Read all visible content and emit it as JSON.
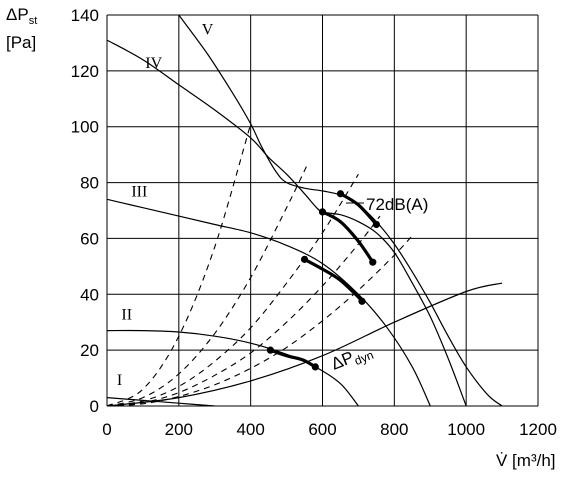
{
  "chart_data": {
    "type": "line",
    "xlabel": "V̇ [m³/h]",
    "ylabel_main": "ΔP",
    "ylabel_sub": "st",
    "ylabel_unit": "[Pa]",
    "xlim": [
      0,
      1200
    ],
    "ylim": [
      0,
      140
    ],
    "x_ticks": [
      "0",
      "200",
      "400",
      "600",
      "800",
      "1000",
      "1200"
    ],
    "y_ticks": [
      "0",
      "20",
      "40",
      "60",
      "80",
      "100",
      "120",
      "140"
    ],
    "grid": true,
    "annotations": {
      "noise": "72dB(A)",
      "dyn_main": "ΔP",
      "dyn_sub": "dyn"
    },
    "series": [
      {
        "name": "I",
        "points": [
          [
            0,
            3
          ],
          [
            100,
            2
          ],
          [
            200,
            1
          ],
          [
            300,
            0
          ]
        ]
      },
      {
        "name": "II",
        "points": [
          [
            0,
            27
          ],
          [
            100,
            27
          ],
          [
            200,
            26.5
          ],
          [
            300,
            25
          ],
          [
            400,
            22.5
          ],
          [
            500,
            18.5
          ],
          [
            580,
            14
          ],
          [
            650,
            8
          ],
          [
            700,
            0
          ]
        ]
      },
      {
        "name": "III",
        "points": [
          [
            0,
            74
          ],
          [
            100,
            71
          ],
          [
            200,
            68
          ],
          [
            300,
            65
          ],
          [
            400,
            62
          ],
          [
            500,
            57.5
          ],
          [
            600,
            51
          ],
          [
            700,
            40
          ],
          [
            780,
            28
          ],
          [
            850,
            14
          ],
          [
            900,
            0
          ]
        ]
      },
      {
        "name": "IV",
        "points": [
          [
            0,
            131
          ],
          [
            100,
            124
          ],
          [
            200,
            115
          ],
          [
            300,
            106
          ],
          [
            400,
            96
          ],
          [
            450,
            89
          ],
          [
            500,
            83
          ],
          [
            550,
            76
          ],
          [
            580,
            71.5
          ],
          [
            600,
            69.5
          ],
          [
            650,
            68.5
          ],
          [
            700,
            66
          ],
          [
            750,
            62
          ],
          [
            800,
            55
          ],
          [
            850,
            44
          ],
          [
            900,
            32
          ],
          [
            950,
            17
          ],
          [
            1000,
            0
          ]
        ]
      },
      {
        "name": "V",
        "points": [
          [
            200,
            140
          ],
          [
            280,
            126
          ],
          [
            350,
            112
          ],
          [
            400,
            101
          ],
          [
            430,
            93
          ],
          [
            470,
            84
          ],
          [
            500,
            80
          ],
          [
            550,
            78
          ],
          [
            600,
            77
          ],
          [
            650,
            75.5
          ],
          [
            700,
            72
          ],
          [
            750,
            66
          ],
          [
            800,
            58
          ],
          [
            850,
            48
          ],
          [
            900,
            37
          ],
          [
            950,
            25
          ],
          [
            1000,
            14
          ],
          [
            1060,
            4
          ],
          [
            1100,
            0
          ]
        ]
      },
      {
        "name": "ΔPdyn",
        "points": [
          [
            0,
            0
          ],
          [
            200,
            3
          ],
          [
            400,
            9
          ],
          [
            600,
            18
          ],
          [
            800,
            30
          ],
          [
            1000,
            41
          ],
          [
            1100,
            44
          ]
        ]
      }
    ],
    "system_curves": [
      {
        "points": [
          [
            0,
            0
          ],
          [
            100,
            6
          ],
          [
            200,
            25
          ],
          [
            300,
            57
          ],
          [
            400,
            101
          ]
        ]
      },
      {
        "points": [
          [
            0,
            0
          ],
          [
            100,
            3
          ],
          [
            200,
            11.5
          ],
          [
            300,
            26
          ],
          [
            400,
            46
          ],
          [
            500,
            71
          ],
          [
            560,
            87
          ]
        ]
      },
      {
        "points": [
          [
            0,
            0
          ],
          [
            100,
            1.8
          ],
          [
            200,
            7
          ],
          [
            300,
            16
          ],
          [
            400,
            28
          ],
          [
            500,
            44
          ],
          [
            600,
            62
          ],
          [
            700,
            83
          ]
        ]
      },
      {
        "points": [
          [
            0,
            0
          ],
          [
            100,
            1.2
          ],
          [
            200,
            4.8
          ],
          [
            300,
            11
          ],
          [
            400,
            19
          ],
          [
            500,
            30
          ],
          [
            600,
            43
          ],
          [
            700,
            58
          ],
          [
            760,
            68
          ]
        ]
      },
      {
        "points": [
          [
            0,
            0
          ],
          [
            100,
            0.8
          ],
          [
            200,
            3.4
          ],
          [
            300,
            7.6
          ],
          [
            400,
            13.5
          ],
          [
            500,
            21
          ],
          [
            600,
            30.5
          ],
          [
            700,
            41.5
          ],
          [
            800,
            54
          ],
          [
            850,
            61
          ]
        ]
      }
    ],
    "operating_ranges": [
      {
        "points": [
          [
            455,
            20
          ],
          [
            500,
            18
          ],
          [
            545,
            16.5
          ],
          [
            580,
            14
          ]
        ]
      },
      {
        "points": [
          [
            550,
            52.5
          ],
          [
            600,
            49
          ],
          [
            650,
            45
          ],
          [
            700,
            39
          ],
          [
            710,
            37.5
          ]
        ]
      },
      {
        "points": [
          [
            600,
            69.5
          ],
          [
            650,
            66
          ],
          [
            700,
            59
          ],
          [
            740,
            51.5
          ]
        ]
      },
      {
        "points": [
          [
            650,
            76
          ],
          [
            700,
            72
          ],
          [
            750,
            65
          ]
        ]
      }
    ],
    "operating_points": [
      [
        455,
        20
      ],
      [
        580,
        14
      ],
      [
        550,
        52.5
      ],
      [
        710,
        37.5
      ],
      [
        600,
        69.5
      ],
      [
        740,
        51.5
      ],
      [
        650,
        76
      ],
      [
        750,
        65
      ]
    ],
    "curve_labels": [
      {
        "text": "I",
        "at": [
          35,
          7.5
        ]
      },
      {
        "text": "II",
        "at": [
          55,
          31
        ]
      },
      {
        "text": "III",
        "at": [
          90,
          75
        ]
      },
      {
        "text": "IV",
        "at": [
          130,
          121
        ]
      },
      {
        "text": "V",
        "at": [
          280,
          133
        ]
      }
    ]
  }
}
